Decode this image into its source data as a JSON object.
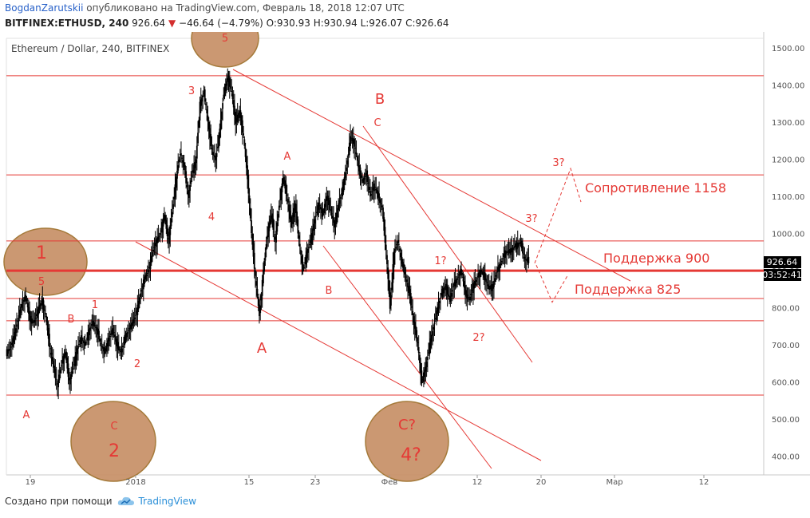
{
  "header": {
    "author": "BogdanZarutskii",
    "published": "опубликовано на TradingView.com, Февраль 18, 2018 12:07 UTC",
    "symbol": "BITFINEX:ETHUSD, 240",
    "price": "926.64",
    "change": "−46.64 (−4.79%)",
    "ohlc": "O:930.93 H:930.94 L:926.07 C:926.64"
  },
  "footer": {
    "created_with": "Создано при помощи",
    "brand": "TradingView"
  },
  "colors": {
    "red": "#e53935",
    "candle": "#000000",
    "circle_fill": "#c8926a",
    "circle_stroke": "#a57a3a",
    "axis_text": "#555555"
  },
  "chart_data": {
    "type": "candlestick",
    "title": "Ethereum / Dollar, 240, BITFINEX",
    "ylim": [
      350,
      1550
    ],
    "y_ticks": [
      "1500.00",
      "1400.00",
      "1300.00",
      "1200.00",
      "1100.00",
      "1000.00",
      "900.00",
      "800.00",
      "700.00",
      "600.00",
      "500.00",
      "400.00"
    ],
    "x_ticks": [
      "19",
      "2018",
      "15",
      "23",
      "Фев",
      "12",
      "20",
      "Мар",
      "12"
    ],
    "last_price_label": "926.64",
    "countdown_label": "03:52:41",
    "price_path": [
      [
        0,
        680
      ],
      [
        1,
        690
      ],
      [
        2,
        720
      ],
      [
        3,
        770
      ],
      [
        4,
        810
      ],
      [
        5,
        830
      ],
      [
        6,
        770
      ],
      [
        7,
        760
      ],
      [
        8,
        790
      ],
      [
        9,
        820
      ],
      [
        10,
        780
      ],
      [
        11,
        700
      ],
      [
        12,
        640
      ],
      [
        13,
        590
      ],
      [
        14,
        650
      ],
      [
        15,
        680
      ],
      [
        16,
        600
      ],
      [
        17,
        640
      ],
      [
        18,
        690
      ],
      [
        19,
        720
      ],
      [
        20,
        700
      ],
      [
        21,
        740
      ],
      [
        22,
        760
      ],
      [
        23,
        740
      ],
      [
        24,
        700
      ],
      [
        25,
        680
      ],
      [
        26,
        720
      ],
      [
        27,
        740
      ],
      [
        28,
        700
      ],
      [
        29,
        680
      ],
      [
        30,
        720
      ],
      [
        31,
        740
      ],
      [
        32,
        760
      ],
      [
        33,
        790
      ],
      [
        34,
        840
      ],
      [
        35,
        880
      ],
      [
        36,
        900
      ],
      [
        37,
        950
      ],
      [
        38,
        980
      ],
      [
        39,
        1000
      ],
      [
        40,
        1050
      ],
      [
        41,
        980
      ],
      [
        42,
        1060
      ],
      [
        43,
        1150
      ],
      [
        44,
        1220
      ],
      [
        45,
        1180
      ],
      [
        46,
        1100
      ],
      [
        47,
        1160
      ],
      [
        48,
        1200
      ],
      [
        49,
        1350
      ],
      [
        50,
        1380
      ],
      [
        51,
        1300
      ],
      [
        52,
        1220
      ],
      [
        53,
        1200
      ],
      [
        54,
        1280
      ],
      [
        55,
        1380
      ],
      [
        56,
        1420
      ],
      [
        57,
        1380
      ],
      [
        58,
        1300
      ],
      [
        59,
        1330
      ],
      [
        60,
        1260
      ],
      [
        61,
        1150
      ],
      [
        62,
        1000
      ],
      [
        63,
        880
      ],
      [
        64,
        780
      ],
      [
        65,
        900
      ],
      [
        66,
        1000
      ],
      [
        67,
        1050
      ],
      [
        68,
        980
      ],
      [
        69,
        1080
      ],
      [
        70,
        1150
      ],
      [
        71,
        1100
      ],
      [
        72,
        1020
      ],
      [
        73,
        1080
      ],
      [
        74,
        980
      ],
      [
        75,
        900
      ],
      [
        76,
        950
      ],
      [
        77,
        980
      ],
      [
        78,
        1040
      ],
      [
        79,
        1080
      ],
      [
        80,
        1050
      ],
      [
        81,
        1100
      ],
      [
        82,
        1060
      ],
      [
        83,
        1020
      ],
      [
        84,
        1080
      ],
      [
        85,
        1120
      ],
      [
        86,
        1180
      ],
      [
        87,
        1260
      ],
      [
        88,
        1240
      ],
      [
        89,
        1180
      ],
      [
        90,
        1140
      ],
      [
        91,
        1160
      ],
      [
        92,
        1100
      ],
      [
        93,
        1130
      ],
      [
        94,
        1100
      ],
      [
        95,
        1070
      ],
      [
        96,
        950
      ],
      [
        97,
        800
      ],
      [
        98,
        950
      ],
      [
        99,
        980
      ],
      [
        100,
        920
      ],
      [
        101,
        880
      ],
      [
        102,
        830
      ],
      [
        103,
        760
      ],
      [
        104,
        700
      ],
      [
        105,
        600
      ],
      [
        106,
        640
      ],
      [
        107,
        700
      ],
      [
        108,
        750
      ],
      [
        109,
        800
      ],
      [
        110,
        840
      ],
      [
        111,
        860
      ],
      [
        112,
        820
      ],
      [
        113,
        860
      ],
      [
        114,
        880
      ],
      [
        115,
        900
      ],
      [
        116,
        840
      ],
      [
        117,
        820
      ],
      [
        118,
        860
      ],
      [
        119,
        880
      ],
      [
        120,
        900
      ],
      [
        121,
        880
      ],
      [
        122,
        850
      ],
      [
        123,
        860
      ],
      [
        124,
        900
      ],
      [
        125,
        920
      ],
      [
        126,
        950
      ],
      [
        127,
        950
      ],
      [
        128,
        960
      ],
      [
        129,
        970
      ],
      [
        130,
        975
      ],
      [
        131,
        930
      ],
      [
        132,
        926
      ]
    ],
    "horizontal_levels": [
      1425,
      1158,
      980,
      900,
      825,
      765,
      565
    ],
    "level_labels": [
      "Сопротивление 1158",
      "Поддержка 900",
      "Поддержка 825"
    ],
    "wave_labels": [
      "1",
      "5",
      "A",
      "B",
      "1",
      "2",
      "C",
      "2",
      "3",
      "4",
      "5",
      "A",
      "A",
      "B",
      "B",
      "C",
      "C?",
      "4?",
      "1?",
      "2?",
      "3?",
      "3?"
    ]
  }
}
